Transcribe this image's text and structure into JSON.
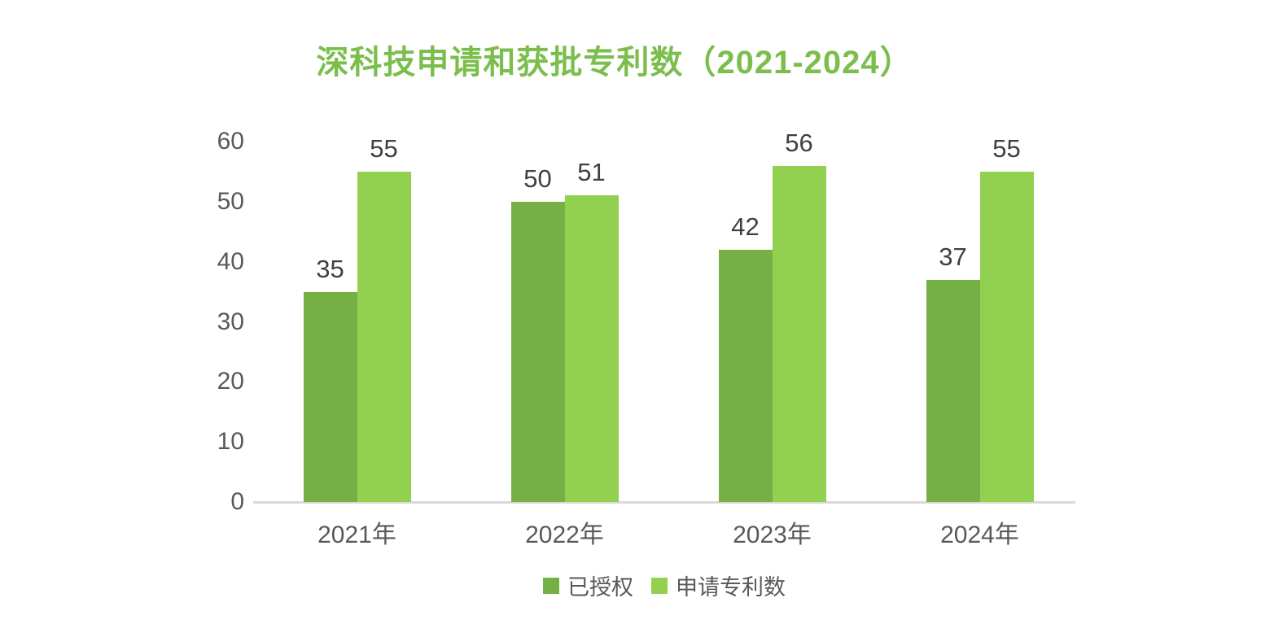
{
  "title": "深科技申请和获批专利数（2021-2024）",
  "colors": {
    "title": "#7CBE4D",
    "axis_line": "#D9D9D9",
    "axis_text": "#595959",
    "data_label_text": "#404040"
  },
  "chart_data": {
    "type": "bar",
    "title": "深科技申请和获批专利数（2021-2024）",
    "categories": [
      "2021年",
      "2022年",
      "2023年",
      "2024年"
    ],
    "series": [
      {
        "name": "已授权",
        "color": "#74B044",
        "values": [
          35,
          50,
          42,
          37
        ]
      },
      {
        "name": "申请专利数",
        "color": "#92D050",
        "values": [
          55,
          51,
          56,
          55
        ]
      }
    ],
    "xlabel": "",
    "ylabel": "",
    "ylim": [
      0,
      60
    ],
    "yticks": [
      0,
      10,
      20,
      30,
      40,
      50,
      60
    ],
    "grid": false,
    "data_labels": true,
    "legend_position": "bottom"
  }
}
